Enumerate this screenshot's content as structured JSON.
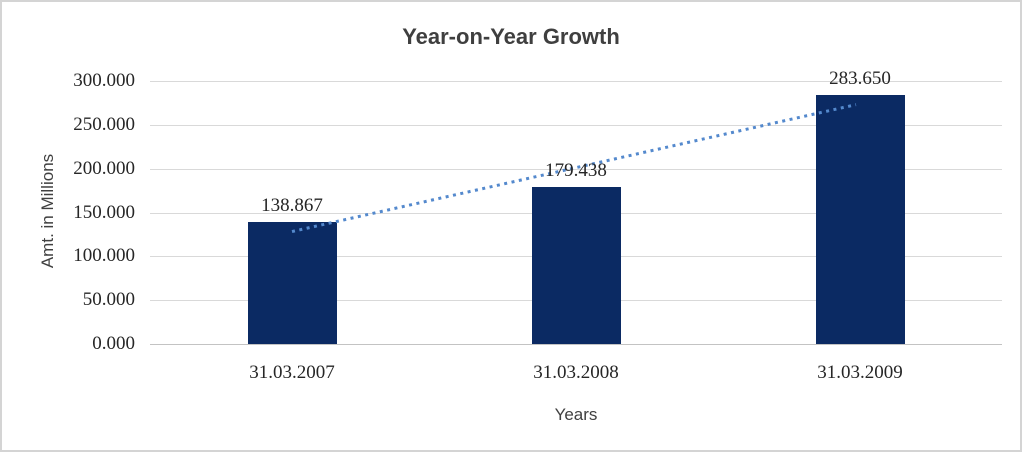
{
  "chart_data": {
    "type": "bar",
    "title": "Year-on-Year Growth",
    "xlabel": "Years",
    "ylabel": "Amt. in Millions",
    "categories": [
      "31.03.2007",
      "31.03.2008",
      "31.03.2009"
    ],
    "values": [
      138.867,
      179.438,
      283.65
    ],
    "value_labels": [
      "138.867",
      "179.438",
      "283.650"
    ],
    "ylim": [
      0,
      300
    ],
    "ytick_step": 50,
    "ytick_labels": [
      "0.000",
      "50.000",
      "100.000",
      "150.000",
      "200.000",
      "250.000",
      "300.000"
    ],
    "grid": true,
    "legend": "none",
    "trendline": {
      "kind": "linear",
      "style": "dotted"
    },
    "colors": {
      "bar": "#0b2a63",
      "trendline": "#5489cd",
      "gridline": "#d9d9d9",
      "baseline": "#c3c3c3",
      "title_text": "#3f3f3f",
      "label_text": "#262626",
      "frame_border": "#d4d4d4",
      "background": "#ffffff"
    }
  }
}
